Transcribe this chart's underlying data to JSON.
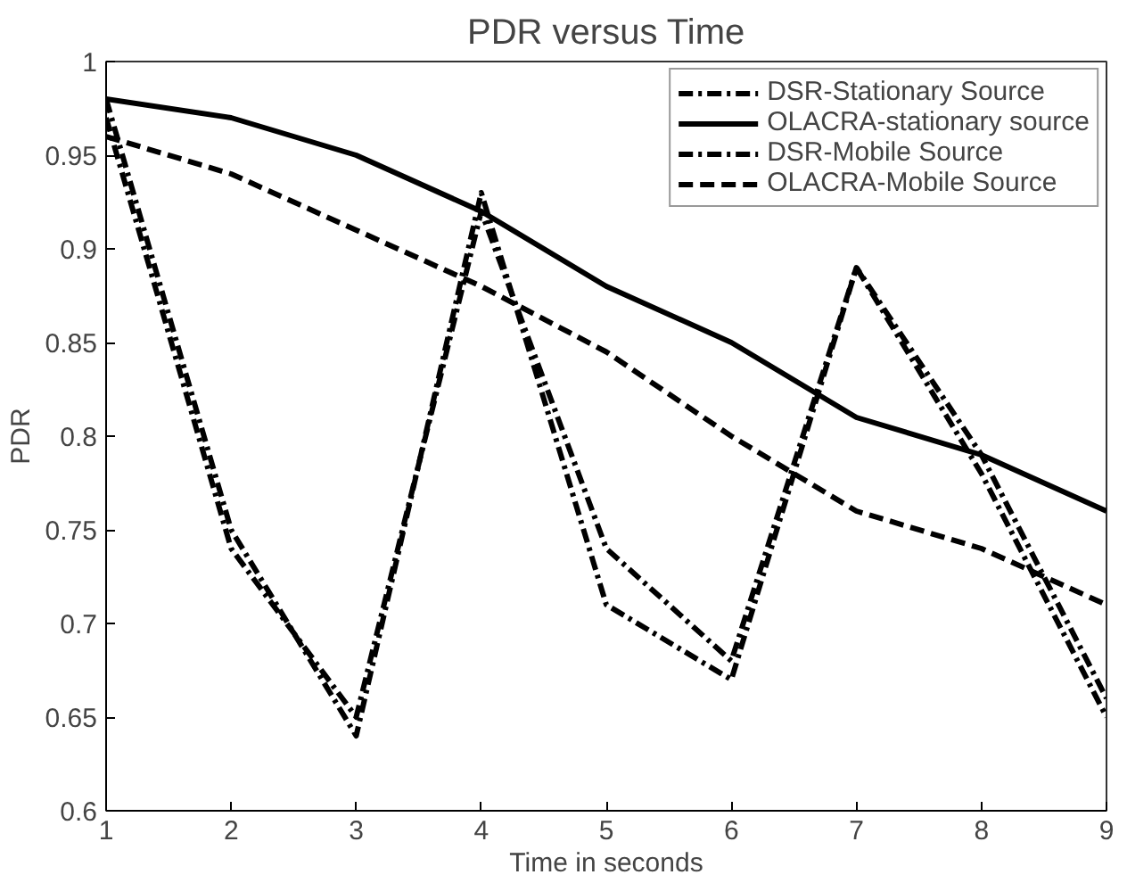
{
  "chart_data": {
    "type": "line",
    "title": "PDR versus Time",
    "xlabel": "Time in seconds",
    "ylabel": "PDR",
    "x": [
      1,
      2,
      3,
      4,
      5,
      6,
      7,
      8,
      9
    ],
    "series": [
      {
        "name": "DSR-Stationary Source",
        "color": "#000000",
        "line_style": "dashdot",
        "values": [
          0.98,
          0.75,
          0.64,
          0.93,
          0.71,
          0.67,
          0.89,
          0.78,
          0.65
        ]
      },
      {
        "name": "OLACRA-stationary source",
        "color": "#000000",
        "line_style": "solid",
        "values": [
          0.98,
          0.97,
          0.95,
          0.92,
          0.88,
          0.85,
          0.81,
          0.79,
          0.76
        ]
      },
      {
        "name": "DSR-Mobile Source",
        "color": "#000000",
        "line_style": "dashdot",
        "values": [
          0.97,
          0.74,
          0.65,
          0.92,
          0.74,
          0.68,
          0.89,
          0.79,
          0.66
        ]
      },
      {
        "name": "OLACRA-Mobile Source",
        "color": "#000000",
        "line_style": "dashed",
        "values": [
          0.96,
          0.94,
          0.91,
          0.88,
          0.845,
          0.8,
          0.76,
          0.74,
          0.71
        ]
      }
    ],
    "xlim": [
      1,
      9
    ],
    "xticks": [
      1,
      2,
      3,
      4,
      5,
      6,
      7,
      8,
      9
    ],
    "ylim": [
      0.6,
      1
    ],
    "yticks": [
      0.6,
      0.65,
      0.7,
      0.75,
      0.8,
      0.85,
      0.9,
      0.95,
      1
    ],
    "grid": false,
    "legend": "top right",
    "marker": "none"
  }
}
